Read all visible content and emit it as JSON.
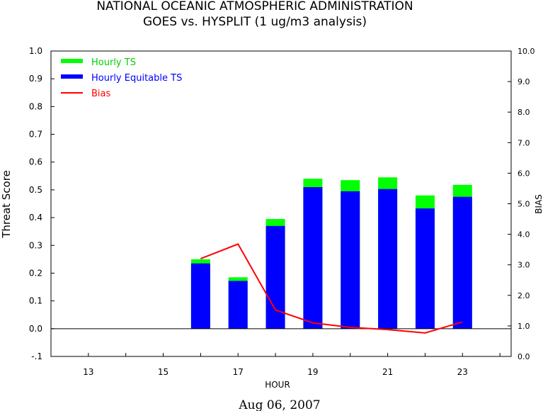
{
  "chart_data": {
    "type": "bar",
    "title": "NATIONAL OCEANIC ATMOSPHERIC ADMINISTRATION",
    "subtitle": "GOES vs. HYSPLIT  (1 ug/m3 analysis)",
    "xlabel": "HOUR",
    "ylabel": "Threat Score",
    "y2label": "BIAS",
    "date_label": "Aug 06, 2007",
    "x_ticks": [
      "13",
      "15",
      "17",
      "19",
      "21",
      "23"
    ],
    "xlim": [
      12,
      24.3
    ],
    "ylim": [
      -0.1,
      1.0
    ],
    "y_ticks": [
      "-.1",
      "0.0",
      "0.1",
      "0.2",
      "0.3",
      "0.4",
      "0.5",
      "0.6",
      "0.7",
      "0.8",
      "0.9",
      "1.0"
    ],
    "y2lim": [
      0.0,
      10.0
    ],
    "y2_ticks": [
      "0.0",
      "1.0",
      "2.0",
      "3.0",
      "4.0",
      "5.0",
      "6.0",
      "7.0",
      "8.0",
      "9.0",
      "10.0"
    ],
    "hours": [
      16,
      17,
      18,
      19,
      20,
      21,
      22,
      23
    ],
    "series": [
      {
        "name": "Hourly TS",
        "color": "#00ff00",
        "values": [
          0.25,
          0.185,
          0.395,
          0.54,
          0.535,
          0.545,
          0.48,
          0.518
        ]
      },
      {
        "name": "Hourly Equitable TS",
        "color": "#0000ff",
        "values": [
          0.235,
          0.172,
          0.37,
          0.51,
          0.495,
          0.503,
          0.433,
          0.475
        ]
      },
      {
        "name": "Bias",
        "color": "#ff0000",
        "axis": "right",
        "values": [
          3.2,
          3.68,
          1.52,
          1.1,
          0.95,
          0.88,
          0.77,
          1.13
        ]
      }
    ],
    "legend_position": "top-left",
    "zero_line": true
  }
}
